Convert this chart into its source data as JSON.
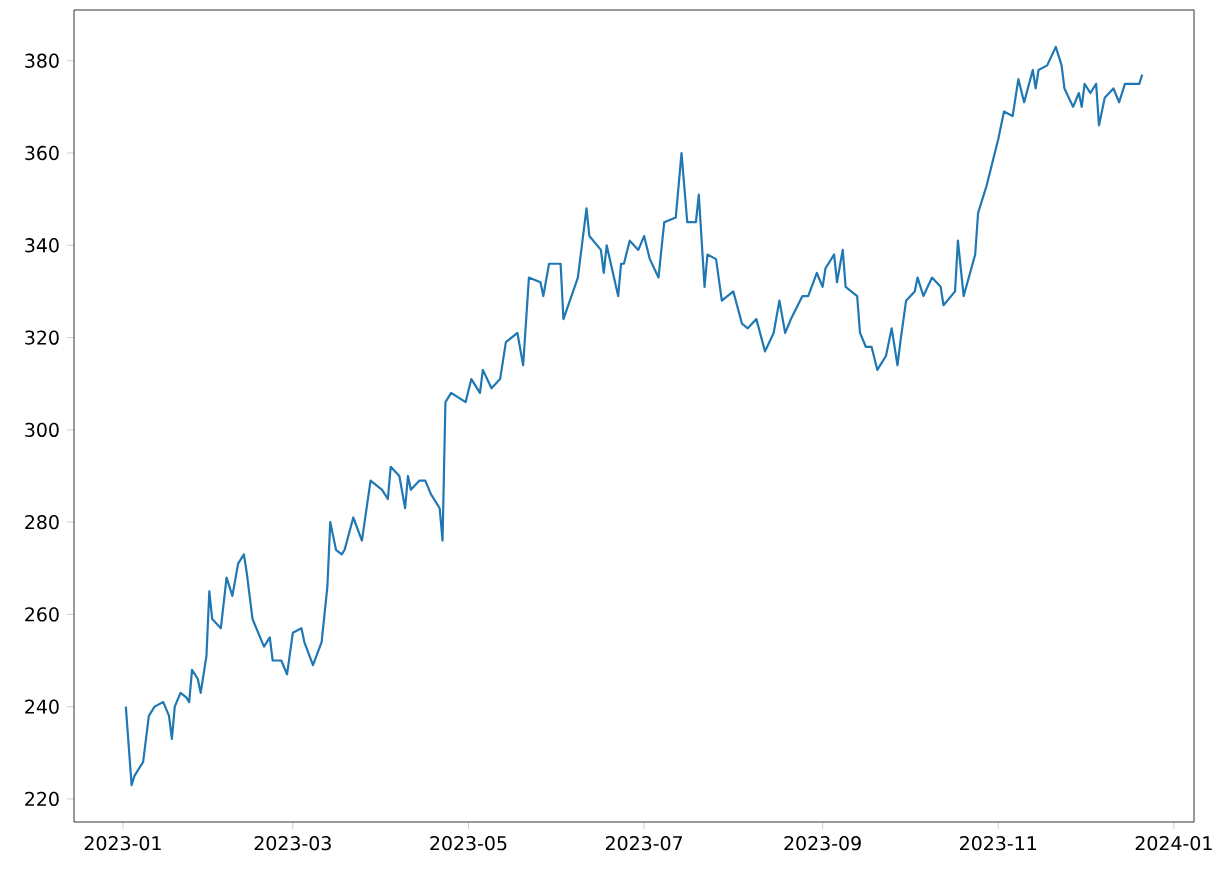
{
  "chart_data": {
    "type": "line",
    "xlim": [
      "2022-12-15",
      "2024-01-08"
    ],
    "ylim": [
      215,
      391
    ],
    "xticks": [
      {
        "value": "2023-01",
        "label": "2023-01"
      },
      {
        "value": "2023-03",
        "label": "2023-03"
      },
      {
        "value": "2023-05",
        "label": "2023-05"
      },
      {
        "value": "2023-07",
        "label": "2023-07"
      },
      {
        "value": "2023-09",
        "label": "2023-09"
      },
      {
        "value": "2023-11",
        "label": "2023-11"
      },
      {
        "value": "2024-01",
        "label": "2024-01"
      }
    ],
    "yticks": [
      220,
      240,
      260,
      280,
      300,
      320,
      340,
      360,
      380
    ],
    "grid": false,
    "marker": "none",
    "line_style": "solid",
    "series": [
      {
        "color": "#1f77b4",
        "x": [
          "2023-01-02",
          "2023-01-04",
          "2023-01-05",
          "2023-01-08",
          "2023-01-10",
          "2023-01-12",
          "2023-01-15",
          "2023-01-17",
          "2023-01-18",
          "2023-01-19",
          "2023-01-21",
          "2023-01-23",
          "2023-01-24",
          "2023-01-25",
          "2023-01-27",
          "2023-01-28",
          "2023-01-30",
          "2023-01-31",
          "2023-02-01",
          "2023-02-04",
          "2023-02-06",
          "2023-02-08",
          "2023-02-10",
          "2023-02-12",
          "2023-02-13",
          "2023-02-15",
          "2023-02-17",
          "2023-02-19",
          "2023-02-21",
          "2023-02-22",
          "2023-02-25",
          "2023-02-27",
          "2023-03-01",
          "2023-03-04",
          "2023-03-05",
          "2023-03-08",
          "2023-03-11",
          "2023-03-13",
          "2023-03-14",
          "2023-03-16",
          "2023-03-18",
          "2023-03-19",
          "2023-03-22",
          "2023-03-25",
          "2023-03-28",
          "2023-04-01",
          "2023-04-03",
          "2023-04-04",
          "2023-04-07",
          "2023-04-09",
          "2023-04-10",
          "2023-04-11",
          "2023-04-14",
          "2023-04-16",
          "2023-04-18",
          "2023-04-21",
          "2023-04-22",
          "2023-04-23",
          "2023-04-25",
          "2023-04-30",
          "2023-05-02",
          "2023-05-05",
          "2023-05-06",
          "2023-05-09",
          "2023-05-12",
          "2023-05-14",
          "2023-05-18",
          "2023-05-20",
          "2023-05-22",
          "2023-05-26",
          "2023-05-27",
          "2023-05-29",
          "2023-06-02",
          "2023-06-03",
          "2023-06-08",
          "2023-06-11",
          "2023-06-12",
          "2023-06-16",
          "2023-06-17",
          "2023-06-18",
          "2023-06-22",
          "2023-06-23",
          "2023-06-24",
          "2023-06-26",
          "2023-06-29",
          "2023-07-01",
          "2023-07-03",
          "2023-07-06",
          "2023-07-08",
          "2023-07-12",
          "2023-07-14",
          "2023-07-16",
          "2023-07-19",
          "2023-07-20",
          "2023-07-22",
          "2023-07-23",
          "2023-07-26",
          "2023-07-28",
          "2023-08-01",
          "2023-08-04",
          "2023-08-06",
          "2023-08-09",
          "2023-08-12",
          "2023-08-15",
          "2023-08-17",
          "2023-08-19",
          "2023-08-21",
          "2023-08-25",
          "2023-08-27",
          "2023-08-30",
          "2023-09-01",
          "2023-09-02",
          "2023-09-05",
          "2023-09-06",
          "2023-09-08",
          "2023-09-09",
          "2023-09-13",
          "2023-09-14",
          "2023-09-16",
          "2023-09-18",
          "2023-09-20",
          "2023-09-23",
          "2023-09-25",
          "2023-09-27",
          "2023-09-28",
          "2023-09-30",
          "2023-10-03",
          "2023-10-04",
          "2023-10-06",
          "2023-10-09",
          "2023-10-12",
          "2023-10-13",
          "2023-10-17",
          "2023-10-18",
          "2023-10-20",
          "2023-10-24",
          "2023-10-25",
          "2023-10-28",
          "2023-10-30",
          "2023-11-01",
          "2023-11-03",
          "2023-11-06",
          "2023-11-08",
          "2023-11-10",
          "2023-11-13",
          "2023-11-14",
          "2023-11-15",
          "2023-11-18",
          "2023-11-21",
          "2023-11-23",
          "2023-11-24",
          "2023-11-27",
          "2023-11-29",
          "2023-11-30",
          "2023-12-01",
          "2023-12-03",
          "2023-12-05",
          "2023-12-06",
          "2023-12-08",
          "2023-12-11",
          "2023-12-13",
          "2023-12-15",
          "2023-12-18",
          "2023-12-20",
          "2023-12-21"
        ],
        "values": [
          240,
          223,
          225,
          228,
          238,
          240,
          241,
          238,
          233,
          240,
          243,
          242,
          241,
          248,
          246,
          243,
          251,
          265,
          259,
          257,
          268,
          264,
          271,
          273,
          269,
          259,
          256,
          253,
          255,
          250,
          250,
          247,
          256,
          257,
          254,
          249,
          254,
          266,
          280,
          274,
          273,
          274,
          281,
          276,
          289,
          287,
          285,
          292,
          290,
          283,
          290,
          287,
          289,
          289,
          286,
          283,
          276,
          306,
          308,
          306,
          311,
          308,
          313,
          309,
          311,
          319,
          321,
          314,
          333,
          332,
          329,
          336,
          336,
          324,
          333,
          348,
          342,
          339,
          334,
          340,
          329,
          336,
          336,
          341,
          339,
          342,
          337,
          333,
          345,
          346,
          360,
          345,
          345,
          351,
          331,
          338,
          337,
          328,
          330,
          323,
          322,
          324,
          317,
          321,
          328,
          321,
          324,
          329,
          329,
          334,
          331,
          335,
          338,
          332,
          339,
          331,
          329,
          321,
          318,
          318,
          313,
          316,
          322,
          314,
          319,
          328,
          330,
          333,
          329,
          333,
          331,
          327,
          330,
          341,
          329,
          338,
          347,
          353,
          358,
          363,
          369,
          368,
          376,
          371,
          378,
          374,
          378,
          379,
          383,
          379,
          374,
          370,
          373,
          370,
          375,
          373,
          375,
          366,
          372,
          374,
          371,
          375,
          375,
          375,
          377
        ]
      }
    ]
  }
}
